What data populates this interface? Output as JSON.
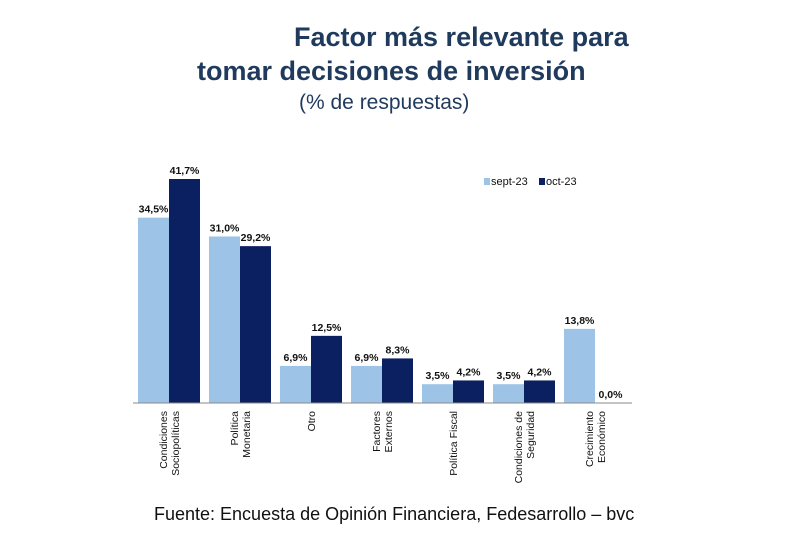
{
  "header": {
    "title_line1": "Factor más relevante para",
    "title_line2": "tomar decisiones de inversión",
    "subtitle": "(% de respuestas)"
  },
  "footer": {
    "source": "Fuente: Encuesta de Opinión Financiera, Fedesarrollo – bvc"
  },
  "chart_data": {
    "type": "bar",
    "title": "Factor más relevante para tomar decisiones de inversión",
    "subtitle": "(% de respuestas)",
    "xlabel": "",
    "ylabel": "",
    "ylim": [
      0,
      45
    ],
    "grid": false,
    "legend_position": "top-right",
    "categories": [
      [
        "Condiciones",
        "Sociopolíticas"
      ],
      [
        "Política",
        "Monetaria"
      ],
      [
        "Otro"
      ],
      [
        "Factores",
        "Externos"
      ],
      [
        "Política Fiscal"
      ],
      [
        "Condiciones de",
        "Seguridad"
      ],
      [
        "Crecimiento",
        "Económico"
      ]
    ],
    "series": [
      {
        "name": "sept-23",
        "color": "#9dc3e6",
        "values": [
          34.5,
          31.0,
          6.9,
          6.9,
          3.5,
          3.5,
          13.8
        ],
        "labels": [
          "34,5%",
          "31,0%",
          "6,9%",
          "6,9%",
          "3,5%",
          "3,5%",
          "13,8%"
        ]
      },
      {
        "name": "oct-23",
        "color": "#0b2060",
        "values": [
          41.7,
          29.2,
          12.5,
          8.3,
          4.2,
          4.2,
          0.0
        ],
        "labels": [
          "41,7%",
          "29,2%",
          "12,5%",
          "8,3%",
          "4,2%",
          "4,2%",
          "0,0%"
        ]
      }
    ]
  }
}
